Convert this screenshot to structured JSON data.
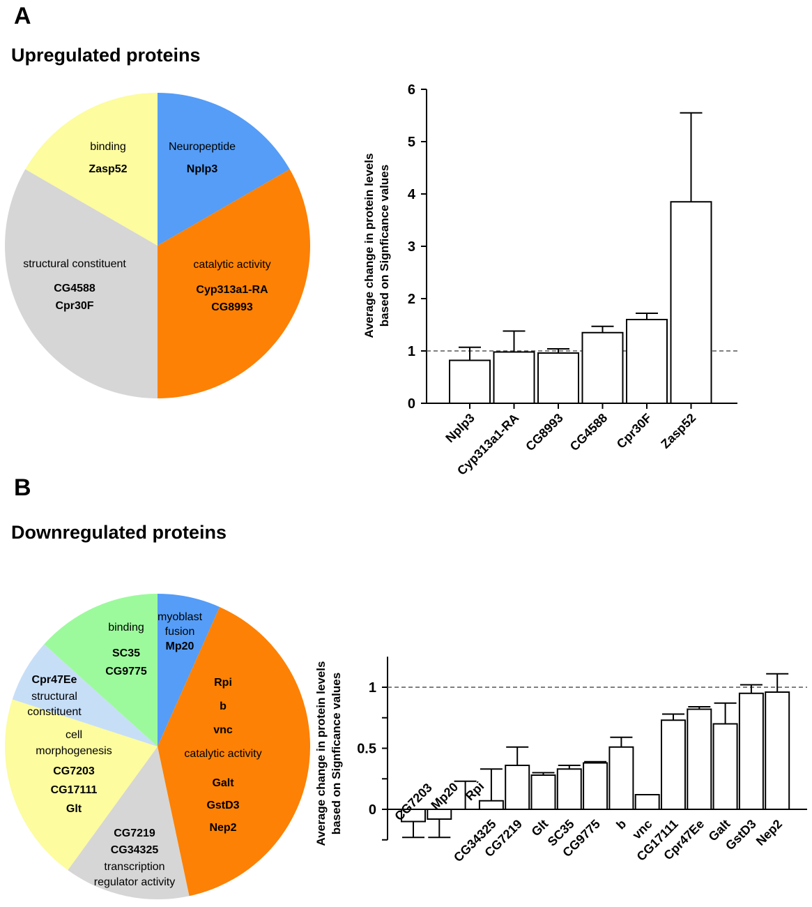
{
  "panels": {
    "a": {
      "letter": "A",
      "title": "Upregulated proteins"
    },
    "b": {
      "letter": "B",
      "title": "Downregulated proteins"
    }
  },
  "chart_data": [
    {
      "type": "pie",
      "title": "Upregulated proteins",
      "slices": [
        {
          "category": "Neuropeptide",
          "proteins": [
            "Nplp3"
          ],
          "fraction": 0.1667,
          "color": "#559df7"
        },
        {
          "category": "catalytic activity",
          "proteins": [
            "Cyp313a1-RA",
            "CG8993"
          ],
          "fraction": 0.3333,
          "color": "#fd8104"
        },
        {
          "category": "structural constituent",
          "proteins": [
            "CG4588",
            "Cpr30F"
          ],
          "fraction": 0.3333,
          "color": "#d6d6d6"
        },
        {
          "category": "binding",
          "proteins": [
            "Zasp52"
          ],
          "fraction": 0.1667,
          "color": "#fdfc9f"
        }
      ]
    },
    {
      "type": "bar",
      "ylabel": "Average change in protein levels\nbased on Signficance values",
      "ylim": [
        0,
        6
      ],
      "yticks": [
        0,
        1,
        2,
        3,
        4,
        5,
        6
      ],
      "reference_line": 1,
      "categories": [
        "Nplp3",
        "Cyp313a1-RA",
        "CG8993",
        "CG4588",
        "Cpr30F",
        "Zasp52"
      ],
      "values": [
        0.82,
        0.98,
        0.96,
        1.35,
        1.6,
        3.85
      ],
      "errors": [
        0.25,
        0.4,
        0.08,
        0.12,
        0.12,
        1.7
      ]
    },
    {
      "type": "pie",
      "title": "Downregulated proteins",
      "slices": [
        {
          "category": "myoblast fusion",
          "proteins": [
            "Mp20"
          ],
          "fraction": 0.0667,
          "color": "#559df7"
        },
        {
          "category": "catalytic activity",
          "proteins": [
            "Rpi",
            "b",
            "vnc",
            "Galt",
            "GstD3",
            "Nep2"
          ],
          "fraction": 0.4,
          "color": "#fd8104"
        },
        {
          "category": "transcription regulator activity",
          "proteins": [
            "CG7219",
            "CG34325"
          ],
          "fraction": 0.1333,
          "color": "#d6d6d6"
        },
        {
          "category": "cell morphogenesis",
          "proteins": [
            "CG7203",
            "CG17111",
            "Glt"
          ],
          "fraction": 0.2,
          "color": "#fdfc9f"
        },
        {
          "category": "structural constituent",
          "proteins": [
            "Cpr47Ee"
          ],
          "fraction": 0.0667,
          "color": "#c7def7"
        },
        {
          "category": "binding",
          "proteins": [
            "SC35",
            "CG9775"
          ],
          "fraction": 0.1333,
          "color": "#9cfa9c"
        }
      ]
    },
    {
      "type": "bar",
      "ylabel": "Average change in protein levels\nbased on Signficance values",
      "ylim": [
        -0.25,
        1.25
      ],
      "yticks": [
        0,
        0.5,
        1
      ],
      "yticklabels": [
        "0",
        "0.5",
        "1"
      ],
      "reference_line": 1,
      "categories": [
        "CG7203",
        "Mp20",
        "Rpi",
        "CG34325",
        "CG7219",
        "Glt",
        "SC35",
        "CG9775",
        "b",
        "vnc",
        "CG17111",
        "Cpr47Ee",
        "Galt",
        "GstD3",
        "Nep2"
      ],
      "values": [
        -0.1,
        -0.08,
        0,
        0.07,
        0.36,
        0.28,
        0.33,
        0.38,
        0.51,
        0.12,
        0.73,
        0.82,
        0.7,
        0.95,
        0.96
      ],
      "errors": [
        0.13,
        0.15,
        0.23,
        0.26,
        0.15,
        0.02,
        0.03,
        0.01,
        0.08,
        0,
        0.05,
        0.02,
        0.17,
        0.07,
        0.15
      ]
    }
  ]
}
